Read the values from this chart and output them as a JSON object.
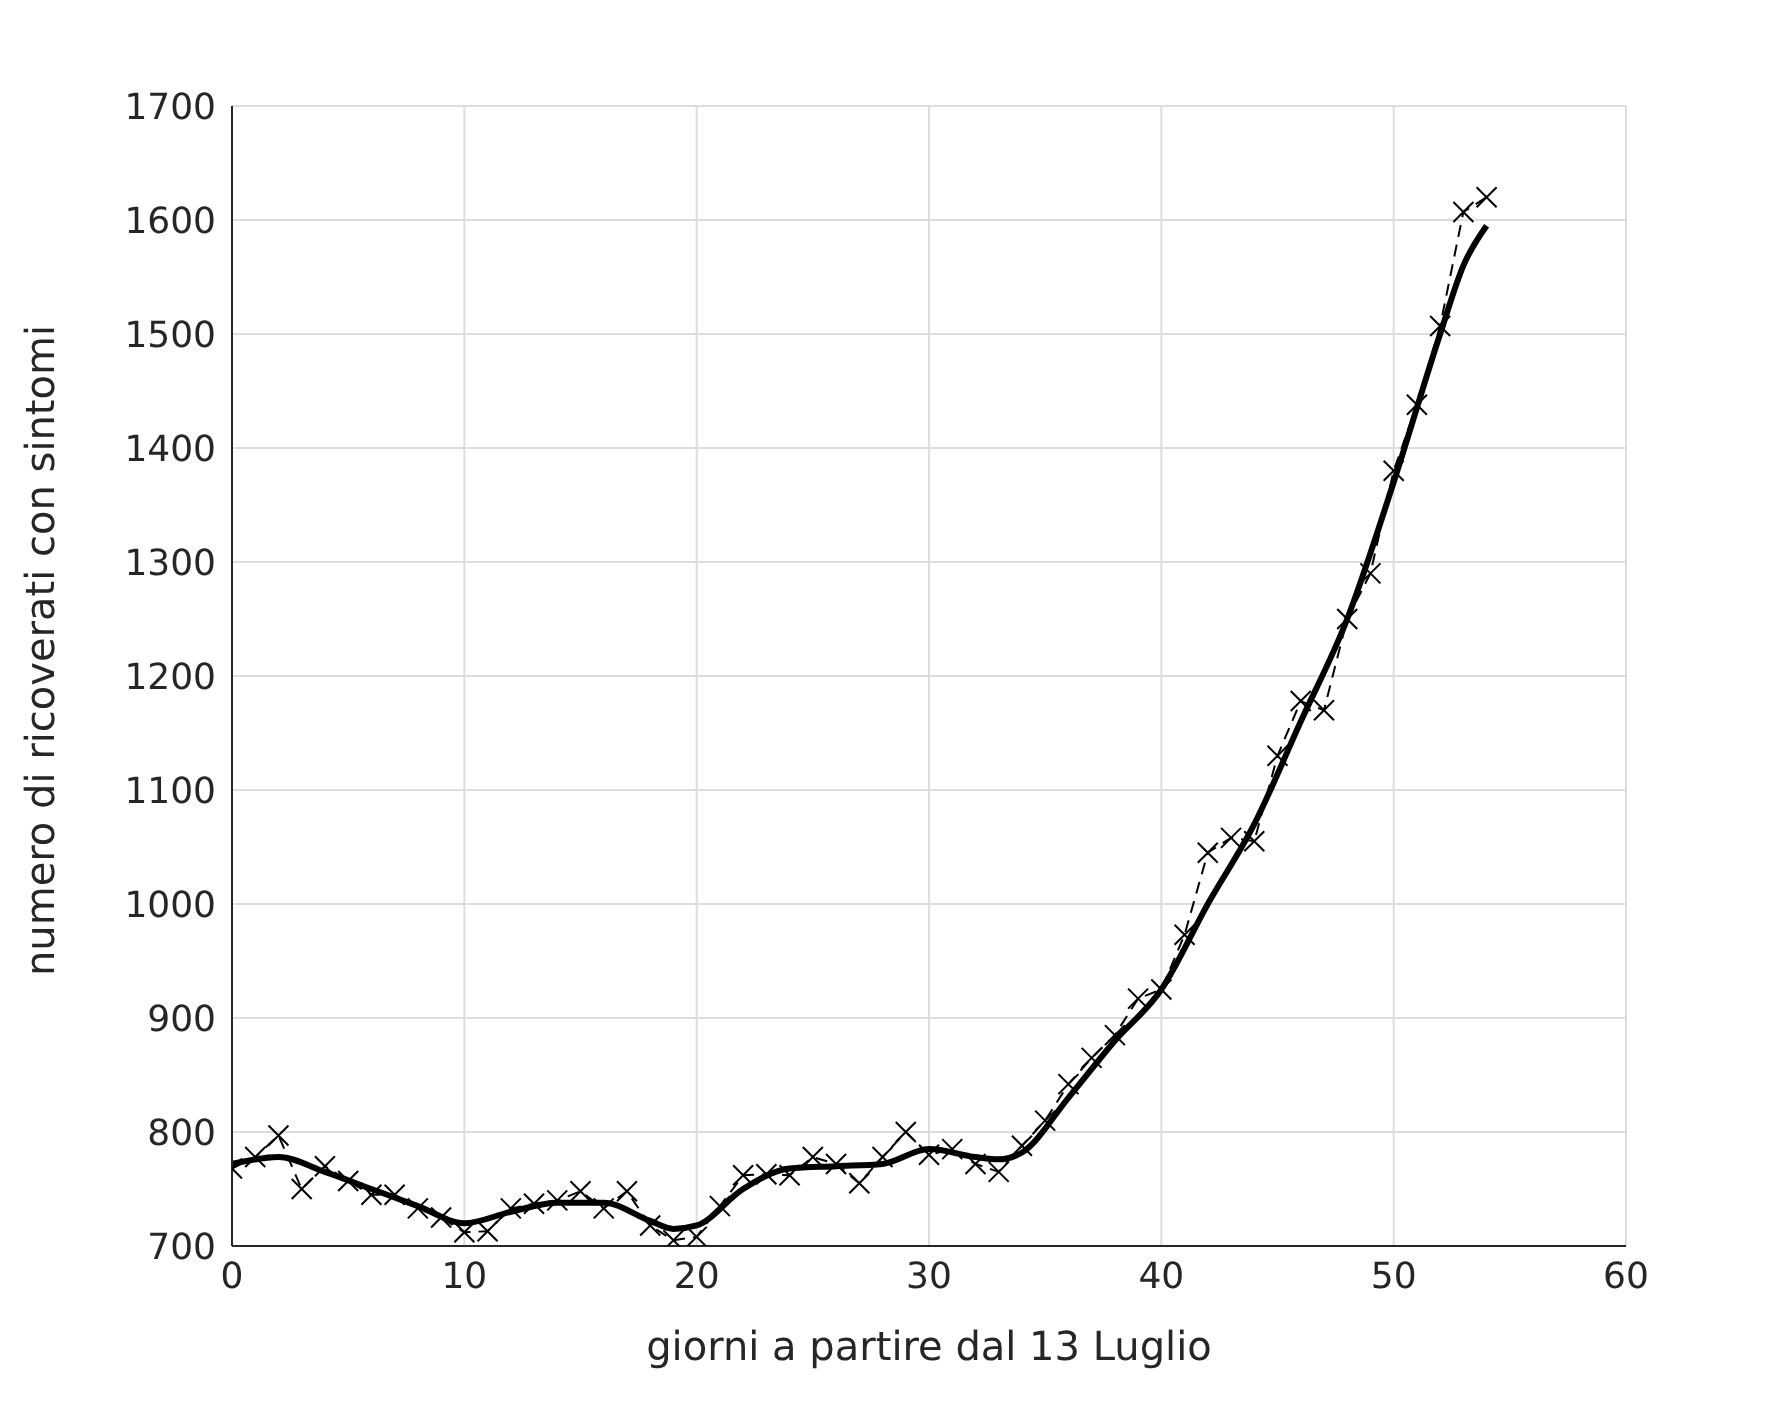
{
  "chart_data": {
    "type": "line",
    "xlabel": "giorni a partire dal 13 Luglio",
    "ylabel": "numero di ricoverati con sintomi",
    "xlim": [
      0,
      60
    ],
    "xticks": [
      0,
      10,
      20,
      30,
      40,
      50,
      60
    ],
    "ylim": [
      700,
      1700
    ],
    "yticks": [
      700,
      800,
      900,
      1000,
      1100,
      1200,
      1300,
      1400,
      1500,
      1600,
      1700
    ],
    "grid": true,
    "legend": false,
    "series": [
      {
        "color": "#000000",
        "line_style": "dashed",
        "marker": "cross",
        "x": [
          0,
          1,
          2,
          3,
          4,
          5,
          6,
          7,
          8,
          9,
          10,
          11,
          12,
          13,
          14,
          15,
          16,
          17,
          18,
          19,
          20,
          21,
          22,
          23,
          24,
          25,
          26,
          27,
          28,
          29,
          30,
          31,
          32,
          33,
          34,
          35,
          36,
          37,
          38,
          39,
          40,
          41,
          42,
          43,
          44,
          45,
          46,
          47,
          48,
          49,
          50,
          51,
          52,
          53,
          54
        ],
        "values": [
          768,
          778,
          797,
          750,
          770,
          757,
          745,
          745,
          733,
          725,
          712,
          713,
          733,
          737,
          740,
          748,
          733,
          748,
          718,
          705,
          708,
          735,
          762,
          763,
          762,
          778,
          772,
          755,
          778,
          800,
          780,
          785,
          772,
          765,
          788,
          810,
          842,
          865,
          885,
          917,
          925,
          973,
          1045,
          1058,
          1055,
          1130,
          1178,
          1170,
          1250,
          1290,
          1380,
          1438,
          1507,
          1607,
          1620
        ]
      },
      {
        "color": "#000000",
        "line_style": "solid",
        "marker": "none",
        "x": [
          0,
          2,
          4,
          6,
          8,
          10,
          12,
          14,
          16,
          18,
          19,
          20,
          22,
          24,
          26,
          28,
          30,
          32,
          33,
          34,
          36,
          38,
          40,
          42,
          44,
          46,
          48,
          50,
          52,
          53,
          54
        ],
        "values": [
          772,
          778,
          765,
          750,
          735,
          720,
          730,
          738,
          738,
          722,
          715,
          718,
          750,
          768,
          770,
          772,
          785,
          778,
          776,
          782,
          830,
          880,
          925,
          1000,
          1070,
          1160,
          1250,
          1370,
          1500,
          1560,
          1595
        ]
      }
    ]
  }
}
